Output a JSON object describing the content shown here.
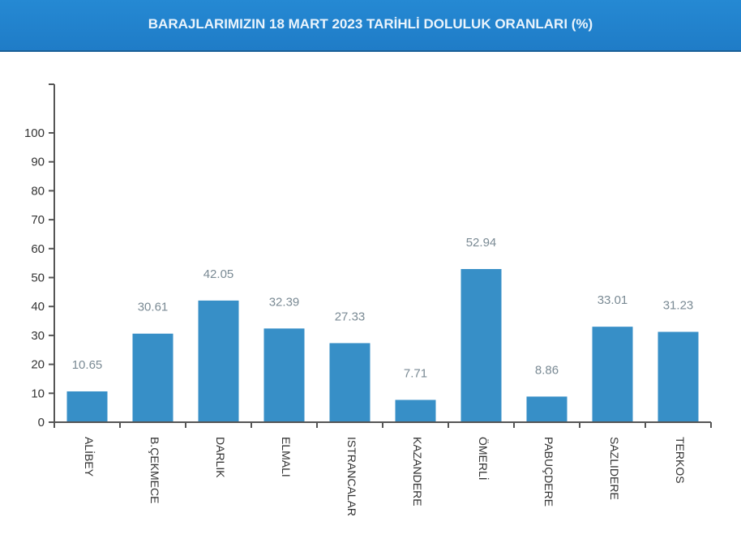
{
  "header": {
    "title": "BARAJLARIMIZIN 18 MART 2023 TARİHLİ DOLULUK ORANLARI (%)",
    "background": "#1f80cc"
  },
  "colors": {
    "bar": "#378fc7",
    "value_label": "#7a8a94",
    "axis": "#555555",
    "tick_label": "#333333"
  },
  "chart_data": {
    "type": "bar",
    "title": "BARAJLARIMIZIN 18 MART 2023 TARİHLİ DOLULUK ORANLARI (%)",
    "xlabel": "",
    "ylabel": "",
    "categories": [
      "ALİBEY",
      "B.ÇEKMECE",
      "DARLIK",
      "ELMALI",
      "ISTRANCALAR",
      "KAZANDERE",
      "ÖMERLİ",
      "PABUÇDERE",
      "SAZLIDERE",
      "TERKOS"
    ],
    "values": [
      10.65,
      30.61,
      42.05,
      32.39,
      27.33,
      7.71,
      52.94,
      8.86,
      33.01,
      31.23
    ],
    "value_labels": [
      "10.65",
      "30.61",
      "42.05",
      "32.39",
      "27.33",
      "7.71",
      "52.94",
      "8.86",
      "33.01",
      "31.23"
    ],
    "yticks": [
      0,
      10,
      20,
      30,
      40,
      50,
      60,
      70,
      80,
      90,
      100
    ],
    "ylim": [
      0,
      117
    ],
    "grid": false,
    "legend": null,
    "x_label_rotation": 90
  }
}
